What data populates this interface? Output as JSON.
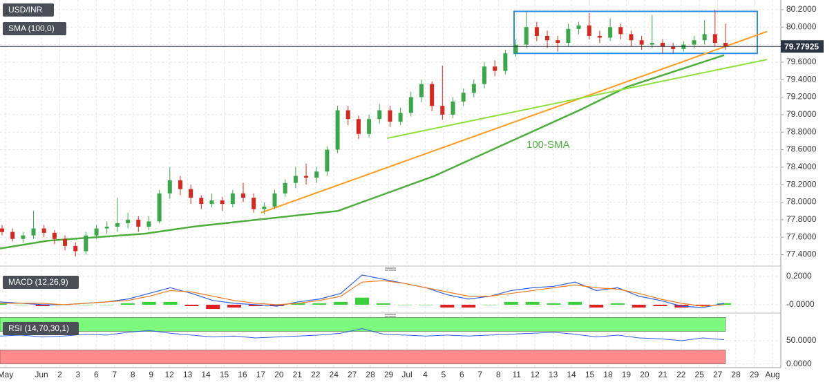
{
  "chart_data": {
    "type": "candlestick",
    "title": "USD/INR",
    "indicator": "SMA (100,0)",
    "annotation": "100-SMA",
    "last_price": {
      "value": 79.77925,
      "label": "79.77925"
    },
    "categories": [
      "May",
      "Jun",
      "2",
      "3",
      "6",
      "7",
      "8",
      "9",
      "12",
      "13",
      "14",
      "15",
      "16",
      "17",
      "20",
      "21",
      "22",
      "24",
      "27",
      "28",
      "29",
      "Jul",
      "4",
      "5",
      "6",
      "7",
      "8",
      "11",
      "12",
      "13",
      "14",
      "15",
      "18",
      "19",
      "20",
      "21",
      "22",
      "25",
      "27",
      "28",
      "29",
      "Aug"
    ],
    "ylim": [
      77.27,
      80.31
    ],
    "yticks": [
      {
        "value": 77.4,
        "label": "77.4000"
      },
      {
        "value": 77.6,
        "label": "77.6000"
      },
      {
        "value": 77.8,
        "label": "77.8000"
      },
      {
        "value": 78.0,
        "label": "78.0000"
      },
      {
        "value": 78.2,
        "label": "78.2000"
      },
      {
        "value": 78.4,
        "label": "78.4000"
      },
      {
        "value": 78.6,
        "label": "78.6000"
      },
      {
        "value": 78.8,
        "label": "78.8000"
      },
      {
        "value": 79.0,
        "label": "79.0000"
      },
      {
        "value": 79.2,
        "label": "79.2000"
      },
      {
        "value": 79.4,
        "label": "79.4000"
      },
      {
        "value": 79.6,
        "label": "79.6000"
      },
      {
        "value": 79.8,
        "label": "79.8000"
      },
      {
        "value": 80.0,
        "label": "80.0000"
      },
      {
        "value": 80.2,
        "label": "80.2000"
      }
    ],
    "grid": true,
    "up_color": "#3aa84a",
    "down_color": "#d7281e",
    "candles": [
      [
        77.7,
        77.74,
        77.62,
        77.66
      ],
      [
        77.66,
        77.7,
        77.55,
        77.58
      ],
      [
        77.58,
        77.66,
        77.54,
        77.62
      ],
      [
        77.62,
        77.9,
        77.58,
        77.7
      ],
      [
        77.7,
        77.74,
        77.6,
        77.65
      ],
      [
        77.65,
        77.68,
        77.52,
        77.58
      ],
      [
        77.58,
        77.62,
        77.45,
        77.5
      ],
      [
        77.5,
        77.54,
        77.38,
        77.44
      ],
      [
        77.44,
        77.66,
        77.4,
        77.62
      ],
      [
        77.62,
        77.74,
        77.58,
        77.7
      ],
      [
        77.7,
        77.78,
        77.64,
        77.72
      ],
      [
        77.72,
        78.05,
        77.66,
        77.76
      ],
      [
        77.76,
        77.88,
        77.7,
        77.8
      ],
      [
        77.8,
        77.84,
        77.66,
        77.72
      ],
      [
        77.72,
        77.84,
        77.68,
        77.78
      ],
      [
        77.78,
        78.14,
        77.76,
        78.1
      ],
      [
        78.1,
        78.4,
        78.04,
        78.25
      ],
      [
        78.25,
        78.3,
        78.08,
        78.15
      ],
      [
        78.15,
        78.2,
        77.98,
        78.05
      ],
      [
        78.05,
        78.08,
        77.92,
        77.98
      ],
      [
        77.98,
        78.1,
        77.94,
        78.02
      ],
      [
        78.02,
        78.06,
        77.9,
        77.98
      ],
      [
        77.98,
        78.14,
        77.94,
        78.1
      ],
      [
        78.1,
        78.22,
        78.0,
        78.05
      ],
      [
        78.05,
        78.1,
        77.88,
        77.92
      ],
      [
        77.92,
        78.0,
        77.86,
        77.95
      ],
      [
        77.95,
        78.14,
        77.92,
        78.1
      ],
      [
        78.1,
        78.26,
        78.06,
        78.22
      ],
      [
        78.22,
        78.4,
        78.16,
        78.3
      ],
      [
        78.3,
        78.44,
        78.2,
        78.28
      ],
      [
        78.28,
        78.4,
        78.22,
        78.35
      ],
      [
        78.35,
        78.64,
        78.3,
        78.6
      ],
      [
        78.6,
        79.1,
        78.56,
        79.05
      ],
      [
        79.05,
        79.1,
        78.88,
        78.95
      ],
      [
        78.95,
        78.99,
        78.72,
        78.78
      ],
      [
        78.78,
        79.0,
        78.74,
        78.95
      ],
      [
        78.95,
        79.12,
        78.9,
        79.05
      ],
      [
        79.05,
        79.1,
        78.86,
        78.92
      ],
      [
        78.92,
        79.08,
        78.88,
        79.02
      ],
      [
        79.02,
        79.26,
        78.98,
        79.2
      ],
      [
        79.2,
        79.4,
        79.14,
        79.35
      ],
      [
        79.35,
        79.38,
        79.04,
        79.1
      ],
      [
        79.1,
        79.56,
        78.94,
        79.0
      ],
      [
        79.0,
        79.2,
        78.96,
        79.15
      ],
      [
        79.15,
        79.3,
        79.1,
        79.25
      ],
      [
        79.25,
        79.4,
        79.2,
        79.35
      ],
      [
        79.35,
        79.6,
        79.3,
        79.55
      ],
      [
        79.55,
        79.62,
        79.44,
        79.5
      ],
      [
        79.5,
        79.74,
        79.46,
        79.7
      ],
      [
        79.7,
        79.86,
        79.66,
        79.8
      ],
      [
        79.8,
        80.18,
        79.76,
        80.0
      ],
      [
        80.0,
        80.06,
        79.84,
        79.9
      ],
      [
        79.9,
        79.96,
        79.76,
        79.85
      ],
      [
        79.85,
        79.9,
        79.72,
        79.82
      ],
      [
        79.82,
        80.04,
        79.78,
        79.98
      ],
      [
        79.98,
        80.06,
        79.92,
        80.02
      ],
      [
        80.02,
        80.16,
        79.86,
        79.9
      ],
      [
        79.9,
        79.96,
        79.82,
        79.88
      ],
      [
        79.88,
        80.1,
        79.84,
        80.0
      ],
      [
        80.0,
        80.04,
        79.86,
        79.92
      ],
      [
        79.92,
        79.96,
        79.78,
        79.85
      ],
      [
        79.85,
        79.9,
        79.74,
        79.8
      ],
      [
        79.8,
        80.14,
        79.76,
        79.82
      ],
      [
        79.82,
        79.86,
        79.7,
        79.78
      ],
      [
        79.78,
        79.82,
        79.7,
        79.75
      ],
      [
        79.75,
        79.84,
        79.72,
        79.8
      ],
      [
        79.8,
        79.9,
        79.76,
        79.85
      ],
      [
        79.85,
        80.08,
        79.8,
        79.92
      ],
      [
        79.92,
        80.2,
        79.78,
        79.82
      ],
      [
        79.82,
        80.04,
        79.74,
        79.78
      ]
    ],
    "sma": {
      "color": "#4caf3c",
      "values": [
        77.47,
        77.56,
        77.6,
        77.64,
        77.72,
        77.78,
        77.84,
        77.9,
        78.1,
        78.3,
        78.55,
        78.8,
        79.05,
        79.32,
        79.5,
        79.68
      ]
    },
    "trendlines": [
      {
        "color": "#ff9a1a",
        "values": [
          77.88,
          79.95
        ]
      },
      {
        "color": "#8ee03a",
        "values": [
          78.73,
          79.63
        ]
      }
    ],
    "box": {
      "color": "#2a8de8",
      "values": [
        79.7,
        80.18
      ]
    },
    "macd": {
      "title": "MACD (12,26,9)",
      "ylim": [
        -0.054,
        0.234
      ],
      "yticks": [
        {
          "value": 0.2,
          "label": "0.2000"
        },
        {
          "value": 0,
          "label": "-0.0000"
        }
      ],
      "macd": {
        "color": "#2f5fe0",
        "values": [
          0.02,
          0.01,
          0.0,
          0.0,
          0.01,
          0.02,
          0.04,
          0.08,
          0.12,
          0.08,
          0.03,
          0.01,
          0.0,
          -0.01,
          0.02,
          0.04,
          0.08,
          0.21,
          0.18,
          0.15,
          0.12,
          0.07,
          0.04,
          0.06,
          0.1,
          0.12,
          0.13,
          0.16,
          0.1,
          0.12,
          0.06,
          0.03,
          -0.01,
          -0.02,
          0.01
        ]
      },
      "signal": {
        "color": "#f07c1e",
        "values": [
          0.01,
          0.01,
          0.01,
          0.0,
          0.01,
          0.02,
          0.03,
          0.06,
          0.1,
          0.09,
          0.06,
          0.03,
          0.01,
          0.0,
          0.01,
          0.03,
          0.06,
          0.16,
          0.17,
          0.15,
          0.12,
          0.09,
          0.06,
          0.06,
          0.08,
          0.1,
          0.12,
          0.14,
          0.12,
          0.11,
          0.08,
          0.04,
          0.01,
          -0.01,
          0.0
        ]
      },
      "histogram": [
        0.01,
        0,
        -0.01,
        0,
        0,
        0,
        0.01,
        0.02,
        0.02,
        -0.01,
        -0.03,
        -0.02,
        -0.01,
        -0.01,
        0.01,
        0.01,
        0.02,
        0.05,
        0.01,
        0,
        0,
        -0.02,
        -0.02,
        0,
        0.02,
        0.02,
        0.01,
        0.02,
        -0.02,
        0.01,
        -0.02,
        -0.01,
        -0.02,
        -0.01,
        0.01
      ]
    },
    "rsi": {
      "title": "RSI (14,70,30,1)",
      "ylim": [
        -8,
        105
      ],
      "yticks": [
        {
          "value": 50,
          "label": "50.0000"
        },
        {
          "value": 0,
          "label": "0.0000"
        }
      ],
      "bands": [
        [
          70,
          100
        ],
        [
          0,
          30
        ]
      ],
      "band_colors": [
        "#7dfa7d",
        "#ff8c8c"
      ],
      "color": "#2f5fe0",
      "values": [
        60,
        62,
        58,
        60,
        64,
        62,
        68,
        72,
        66,
        62,
        58,
        60,
        56,
        58,
        60,
        62,
        66,
        76,
        64,
        62,
        60,
        62,
        60,
        62,
        64,
        66,
        68,
        64,
        58,
        62,
        56,
        54,
        50,
        56,
        52
      ]
    }
  }
}
